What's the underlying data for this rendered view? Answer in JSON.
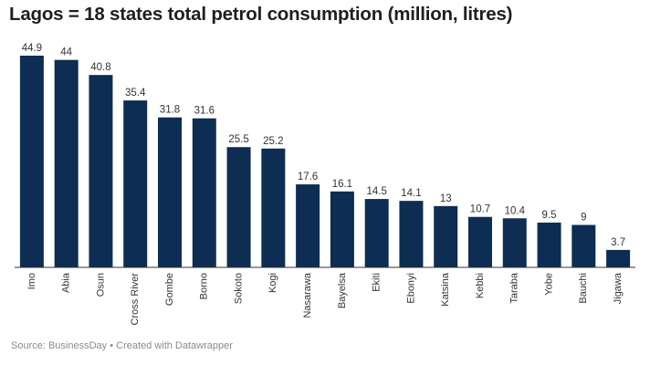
{
  "chart_data": {
    "type": "bar",
    "title": "Lagos = 18 states total petrol consumption (million, litres)",
    "categories": [
      "Imo",
      "Abia",
      "Osun",
      "Cross River",
      "Gombe",
      "Borno",
      "Sokoto",
      "Kogi",
      "Nasarawa",
      "Bayelsa",
      "Ekiti",
      "Ebonyi",
      "Katsina",
      "Kebbi",
      "Taraba",
      "Yobe",
      "Bauchi",
      "Jigawa"
    ],
    "values": [
      44.9,
      44,
      40.8,
      35.4,
      31.8,
      31.6,
      25.5,
      25.2,
      17.6,
      16.1,
      14.5,
      14.1,
      13,
      10.7,
      10.4,
      9.5,
      9,
      3.7
    ],
    "value_labels": [
      "44.9",
      "44",
      "40.8",
      "35.4",
      "31.8",
      "31.6",
      "25.5",
      "25.2",
      "17.6",
      "16.1",
      "14.5",
      "14.1",
      "13",
      "10.7",
      "10.4",
      "9.5",
      "9",
      "3.7"
    ],
    "ylim": [
      0,
      44.9
    ],
    "grid": false,
    "bar_color": "#0d2d52",
    "xlabel": "",
    "ylabel": ""
  },
  "footer": {
    "source": "Source: BusinessDay • Created with Datawrapper"
  }
}
